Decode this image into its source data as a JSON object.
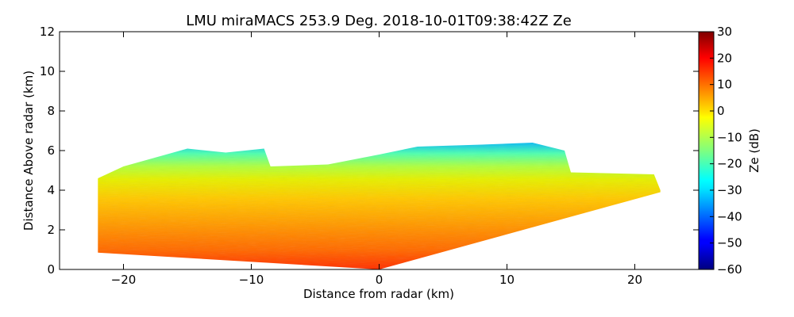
{
  "chart_data": {
    "type": "heatmap",
    "title": "LMU miraMACS 253.9 Deg. 2018-10-01T09:38:42Z  Ze",
    "xlabel": "Distance from radar (km)",
    "ylabel": "Distance Above radar  (km)",
    "xlim": [
      -25,
      25
    ],
    "ylim": [
      0,
      12
    ],
    "xticks": [
      -20,
      -10,
      0,
      10,
      20
    ],
    "xtick_labels": [
      "−20",
      "−10",
      "0",
      "10",
      "20"
    ],
    "yticks": [
      0,
      2,
      4,
      6,
      8,
      10,
      12
    ],
    "ytick_labels": [
      "0",
      "2",
      "4",
      "6",
      "8",
      "10",
      "12"
    ],
    "colorbar": {
      "label": "Ze (dB)",
      "range": [
        -60,
        30
      ],
      "ticks": [
        30,
        20,
        10,
        0,
        -10,
        -20,
        -30,
        -40,
        -50,
        -60
      ],
      "tick_labels": [
        "30",
        "20",
        "10",
        "0",
        "−10",
        "−20",
        "−30",
        "−40",
        "−50",
        "−60"
      ],
      "colormap": "jet"
    },
    "data_region": {
      "description_free": true,
      "bottom_boundary_km": [
        [
          -22,
          0.85
        ],
        [
          0,
          0
        ],
        [
          22,
          3.9
        ]
      ],
      "top_boundary_km": [
        [
          -22,
          4.6
        ],
        [
          -20,
          5.2
        ],
        [
          -15,
          6.1
        ],
        [
          -12,
          5.9
        ],
        [
          -9,
          6.1
        ],
        [
          -8.5,
          5.2
        ],
        [
          -4,
          5.3
        ],
        [
          0,
          5.8
        ],
        [
          3,
          6.2
        ],
        [
          8,
          6.3
        ],
        [
          12,
          6.4
        ],
        [
          14.5,
          6.0
        ],
        [
          15,
          4.9
        ],
        [
          21.5,
          4.8
        ],
        [
          22,
          4.0
        ]
      ],
      "reflectivity_layers_dB": [
        {
          "height_km": [
            0,
            1.2
          ],
          "ze": 15
        },
        {
          "height_km": [
            1.2,
            3.0
          ],
          "ze": 8
        },
        {
          "height_km": [
            3.0,
            4.2
          ],
          "ze": 3
        },
        {
          "height_km": [
            4.2,
            5.2
          ],
          "ze": -8
        },
        {
          "height_km": [
            5.2,
            6.4
          ],
          "ze": -22
        }
      ]
    },
    "grid": false
  }
}
